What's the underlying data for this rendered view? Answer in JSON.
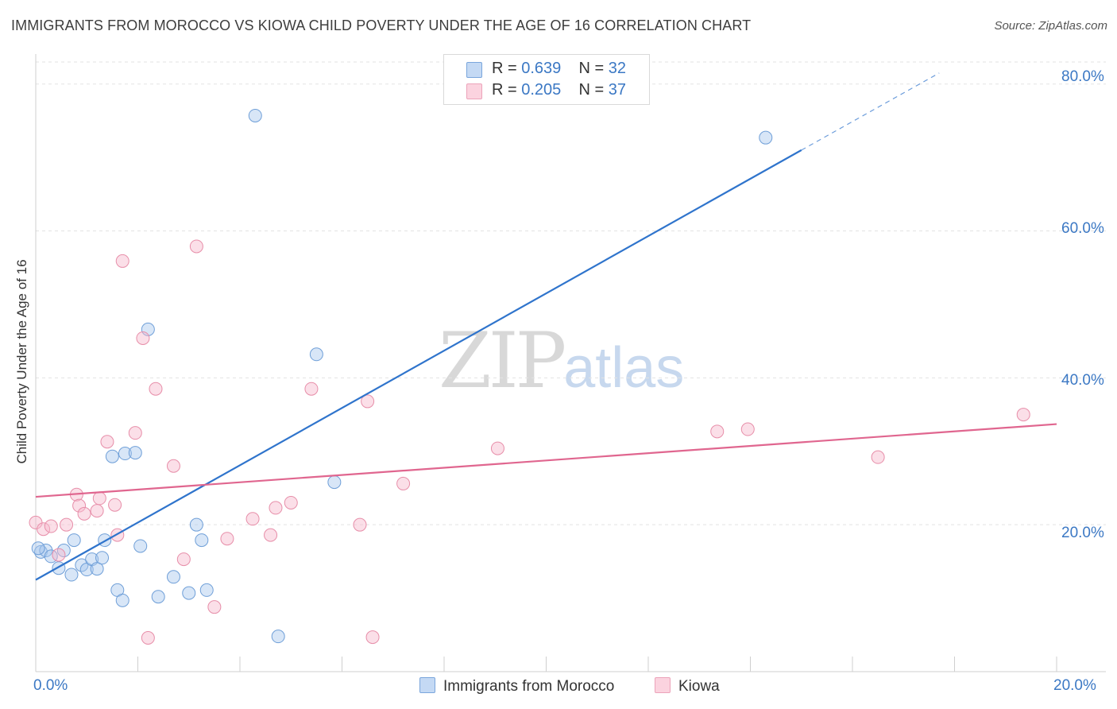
{
  "header": {
    "title": "IMMIGRANTS FROM MOROCCO VS KIOWA CHILD POVERTY UNDER THE AGE OF 16 CORRELATION CHART",
    "source": "Source: ZipAtlas.com"
  },
  "watermark": {
    "zip": "ZIP",
    "atlas": "atlas"
  },
  "legend": {
    "rows": [
      {
        "r_label": "R = ",
        "r_value": "0.639",
        "n_label": "N = ",
        "n_value": "32",
        "color": "#a9c7ee"
      },
      {
        "r_label": "R = ",
        "r_value": "0.205",
        "n_label": "N = ",
        "n_value": "37",
        "color": "#f6b8cb"
      }
    ]
  },
  "bottom_legend": {
    "series1": "Immigrants from Morocco",
    "series2": "Kiowa"
  },
  "chart_data": {
    "type": "scatter",
    "title": "IMMIGRANTS FROM MOROCCO VS KIOWA CHILD POVERTY UNDER THE AGE OF 16 CORRELATION CHART",
    "xlabel": "",
    "ylabel": "Child Poverty Under the Age of 16",
    "xlim": [
      0,
      20
    ],
    "ylim": [
      0,
      83
    ],
    "x_tick_labels": [
      "0.0%",
      "20.0%"
    ],
    "y_ticks": [
      20,
      40,
      60,
      80
    ],
    "y_tick_labels": [
      "20.0%",
      "40.0%",
      "60.0%",
      "80.0%"
    ],
    "grid": true,
    "legend_position": "top-center",
    "series": [
      {
        "name": "Immigrants from Morocco",
        "color": "#a9c7ee",
        "stroke": "#6f9fd8",
        "line_color": "#2f74cc",
        "trend": {
          "x0": 0,
          "y0": 12.5,
          "x1": 15.0,
          "y1": 71.0,
          "dash_to_x": 17.7,
          "dash_to_y": 81.5
        },
        "points": [
          [
            0.1,
            16.3
          ],
          [
            0.2,
            16.5
          ],
          [
            0.3,
            15.7
          ],
          [
            0.45,
            14.1
          ],
          [
            0.7,
            13.2
          ],
          [
            0.75,
            17.9
          ],
          [
            0.55,
            16.5
          ],
          [
            0.9,
            14.5
          ],
          [
            1.0,
            13.9
          ],
          [
            1.1,
            15.3
          ],
          [
            1.2,
            14.0
          ],
          [
            1.3,
            15.5
          ],
          [
            1.35,
            17.9
          ],
          [
            1.5,
            29.3
          ],
          [
            1.6,
            11.1
          ],
          [
            1.7,
            9.7
          ],
          [
            1.75,
            29.7
          ],
          [
            1.95,
            29.8
          ],
          [
            2.05,
            17.1
          ],
          [
            2.2,
            46.6
          ],
          [
            2.4,
            10.2
          ],
          [
            2.7,
            12.9
          ],
          [
            3.0,
            10.7
          ],
          [
            3.15,
            20.0
          ],
          [
            3.25,
            17.9
          ],
          [
            3.35,
            11.1
          ],
          [
            4.3,
            75.7
          ],
          [
            4.75,
            4.8
          ],
          [
            5.5,
            43.2
          ],
          [
            5.85,
            25.8
          ],
          [
            14.3,
            72.7
          ],
          [
            0.05,
            16.8
          ]
        ]
      },
      {
        "name": "Kiowa",
        "color": "#f6b8cb",
        "stroke": "#e78ea9",
        "line_color": "#e0668f",
        "trend": {
          "x0": 0,
          "y0": 23.8,
          "x1": 20.0,
          "y1": 33.7
        },
        "points": [
          [
            0.0,
            20.3
          ],
          [
            0.15,
            19.4
          ],
          [
            0.3,
            19.8
          ],
          [
            0.45,
            15.9
          ],
          [
            0.6,
            20.0
          ],
          [
            0.8,
            24.1
          ],
          [
            0.85,
            22.6
          ],
          [
            0.95,
            21.5
          ],
          [
            1.2,
            21.9
          ],
          [
            1.25,
            23.6
          ],
          [
            1.4,
            31.3
          ],
          [
            1.55,
            22.7
          ],
          [
            1.6,
            18.6
          ],
          [
            1.7,
            55.9
          ],
          [
            1.95,
            32.5
          ],
          [
            2.1,
            45.4
          ],
          [
            2.2,
            4.6
          ],
          [
            2.35,
            38.5
          ],
          [
            2.7,
            28.0
          ],
          [
            2.9,
            15.3
          ],
          [
            3.15,
            57.9
          ],
          [
            3.5,
            8.8
          ],
          [
            3.75,
            18.1
          ],
          [
            4.25,
            20.8
          ],
          [
            4.6,
            18.6
          ],
          [
            4.7,
            22.3
          ],
          [
            5.0,
            23.0
          ],
          [
            5.4,
            38.5
          ],
          [
            6.35,
            20.0
          ],
          [
            6.6,
            4.7
          ],
          [
            6.5,
            36.8
          ],
          [
            7.2,
            25.6
          ],
          [
            9.05,
            30.4
          ],
          [
            13.35,
            32.7
          ],
          [
            13.95,
            33.0
          ],
          [
            16.5,
            29.2
          ],
          [
            19.35,
            35.0
          ]
        ]
      }
    ]
  }
}
